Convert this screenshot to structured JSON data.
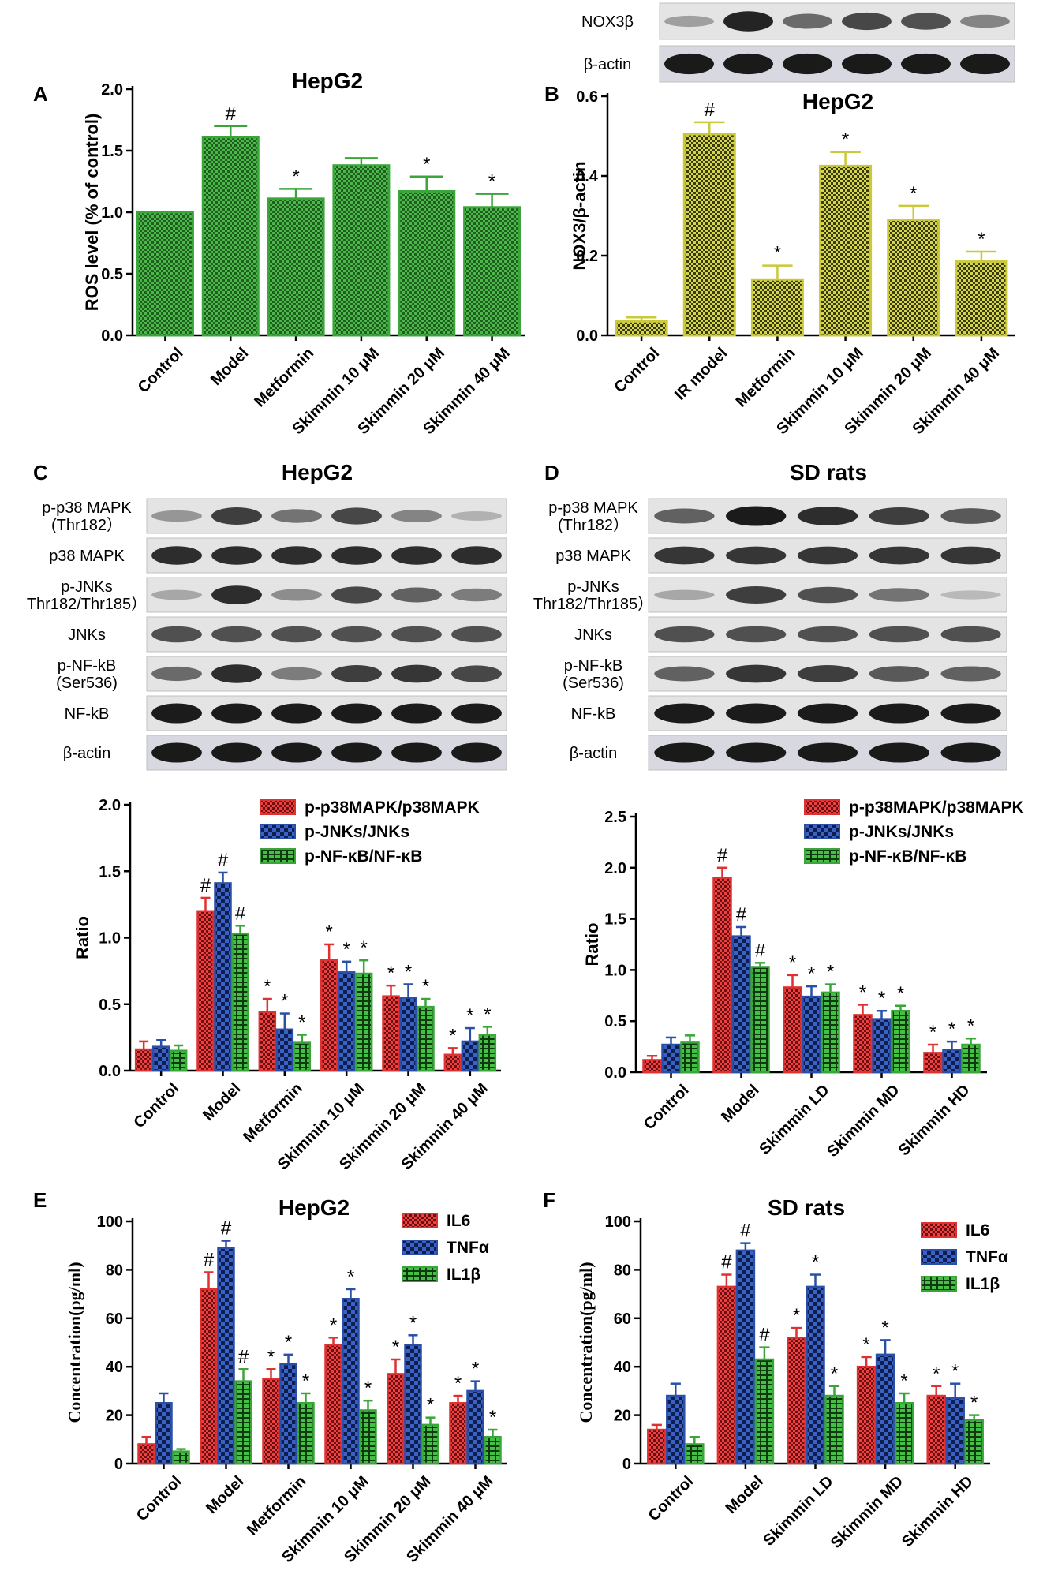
{
  "colors": {
    "green": "#3aa63a",
    "yellow": "#c9c93a",
    "red": "#e03030",
    "blue": "#2a4fa8"
  },
  "blots": {
    "B": {
      "labels": [
        "NOX3β",
        "β-actin"
      ],
      "intensities": [
        [
          0.25,
          0.95,
          0.55,
          0.75,
          0.7,
          0.4
        ],
        [
          1,
          1,
          1,
          1,
          1,
          1
        ]
      ]
    },
    "C": {
      "labels": [
        "p-p38 MAPK\n(Thr182）",
        "p38 MAPK",
        "p-JNKs\nThr182/Thr185）",
        "JNKs",
        "p-NF-kB\n(Ser536)",
        "NF-kB",
        "β-actin"
      ],
      "intensities": [
        [
          0.3,
          0.8,
          0.5,
          0.75,
          0.4,
          0.15
        ],
        [
          0.9,
          0.9,
          0.9,
          0.9,
          0.9,
          0.9
        ],
        [
          0.2,
          0.9,
          0.35,
          0.75,
          0.6,
          0.45
        ],
        [
          0.7,
          0.7,
          0.7,
          0.7,
          0.7,
          0.7
        ],
        [
          0.55,
          0.9,
          0.45,
          0.8,
          0.85,
          0.75
        ],
        [
          1,
          1,
          1,
          1,
          1,
          1
        ],
        [
          1,
          1,
          1,
          1,
          1,
          1
        ]
      ]
    },
    "D": {
      "labels": [
        "p-p38 MAPK\n(Thr182）",
        "p38 MAPK",
        "p-JNKs\nThr182/Thr185）",
        "JNKs",
        "p-NF-kB\n(Ser536)",
        "NF-kB",
        "β-actin"
      ],
      "intensities": [
        [
          0.6,
          1,
          0.9,
          0.8,
          0.65
        ],
        [
          0.85,
          0.85,
          0.85,
          0.85,
          0.85
        ],
        [
          0.2,
          0.8,
          0.7,
          0.5,
          0.1
        ],
        [
          0.7,
          0.7,
          0.7,
          0.7,
          0.7
        ],
        [
          0.6,
          0.85,
          0.8,
          0.65,
          0.6
        ],
        [
          1,
          1,
          1,
          1,
          1
        ],
        [
          1,
          1,
          1,
          1,
          1
        ]
      ]
    }
  },
  "chart_data": [
    {
      "panel": "A",
      "type": "bar",
      "title": "HepG2",
      "ylabel": "ROS level (% of control)",
      "ylim": [
        0,
        2.0
      ],
      "yticks": [
        "0.0",
        "0.5",
        "1.0",
        "1.5",
        "2.0"
      ],
      "categories": [
        "Control",
        "Model",
        "Metformin",
        "Skimmin 10 μM",
        "Skimmin 20 μM",
        "Skimmin 40 μM"
      ],
      "series": [
        {
          "color": "green",
          "values": [
            1.0,
            1.61,
            1.11,
            1.38,
            1.17,
            1.04
          ],
          "errors": [
            0,
            0.09,
            0.08,
            0.06,
            0.12,
            0.11
          ],
          "marks": [
            "",
            "#",
            "*",
            "",
            "*",
            "*"
          ]
        }
      ]
    },
    {
      "panel": "B",
      "type": "bar",
      "title": "HepG2",
      "ylabel": "NOX3/β-actin",
      "ylim": [
        0,
        0.6
      ],
      "yticks": [
        "0.0",
        "0.2",
        "0.4",
        "0.6"
      ],
      "categories": [
        "Control",
        "IR model",
        "Metformin",
        "Skimmin 10 μM",
        "Skimmin 20 μM",
        "Skimmin 40 μM"
      ],
      "series": [
        {
          "color": "yellow",
          "values": [
            0.035,
            0.505,
            0.14,
            0.425,
            0.29,
            0.185
          ],
          "errors": [
            0.01,
            0.03,
            0.035,
            0.035,
            0.035,
            0.025
          ],
          "marks": [
            "",
            "#",
            "*",
            "*",
            "*",
            "*"
          ]
        }
      ]
    },
    {
      "panel": "C",
      "type": "bar",
      "title": "HepG2",
      "ylabel": "Ratio",
      "ylim": [
        0,
        2.0
      ],
      "yticks": [
        "0.0",
        "0.5",
        "1.0",
        "1.5",
        "2.0"
      ],
      "categories": [
        "Control",
        "Model",
        "Metformin",
        "Skimmin 10 μM",
        "Skimmin 20 μM",
        "Skimmin 40 μM"
      ],
      "series": [
        {
          "name": "p-p38MAPK/p38MAPK",
          "color": "red",
          "values": [
            0.16,
            1.2,
            0.44,
            0.83,
            0.56,
            0.12
          ],
          "errors": [
            0.06,
            0.1,
            0.1,
            0.12,
            0.08,
            0.05
          ],
          "marks": [
            "",
            "#",
            "*",
            "*",
            "*",
            "*"
          ]
        },
        {
          "name": "p-JNKs/JNKs",
          "color": "blue",
          "values": [
            0.18,
            1.41,
            0.31,
            0.74,
            0.55,
            0.22
          ],
          "errors": [
            0.05,
            0.08,
            0.12,
            0.08,
            0.1,
            0.1
          ],
          "marks": [
            "",
            "#",
            "*",
            "*",
            "*",
            "*"
          ]
        },
        {
          "name": "p-NF-κB/NF-κB",
          "color": "green",
          "values": [
            0.15,
            1.03,
            0.21,
            0.73,
            0.48,
            0.27
          ],
          "errors": [
            0.04,
            0.06,
            0.06,
            0.1,
            0.06,
            0.06
          ],
          "marks": [
            "",
            "#",
            "*",
            "*",
            "*",
            "*"
          ]
        }
      ]
    },
    {
      "panel": "D",
      "type": "bar",
      "title": "SD rats",
      "ylabel": "Ratio",
      "ylim": [
        0,
        2.5
      ],
      "yticks": [
        "0.0",
        "0.5",
        "1.0",
        "1.5",
        "2.0",
        "2.5"
      ],
      "categories": [
        "Control",
        "Model",
        "Skimmin LD",
        "Skimmin MD",
        "Skimmin HD"
      ],
      "series": [
        {
          "name": "p-p38MAPK/p38MAPK",
          "color": "red",
          "values": [
            0.12,
            1.9,
            0.83,
            0.56,
            0.19
          ],
          "errors": [
            0.04,
            0.1,
            0.12,
            0.1,
            0.08
          ],
          "marks": [
            "",
            "#",
            "*",
            "*",
            "*"
          ]
        },
        {
          "name": "p-JNKs/JNKs",
          "color": "blue",
          "values": [
            0.27,
            1.33,
            0.74,
            0.52,
            0.22
          ],
          "errors": [
            0.07,
            0.09,
            0.1,
            0.08,
            0.08
          ],
          "marks": [
            "",
            "#",
            "*",
            "*",
            "*"
          ]
        },
        {
          "name": "p-NF-κB/NF-κB",
          "color": "green",
          "values": [
            0.29,
            1.03,
            0.78,
            0.6,
            0.27
          ],
          "errors": [
            0.07,
            0.04,
            0.08,
            0.05,
            0.06
          ],
          "marks": [
            "",
            "#",
            "*",
            "*",
            "*"
          ]
        }
      ]
    },
    {
      "panel": "E",
      "type": "bar",
      "title": "HepG2",
      "ylabel": "Concentration(pg/ml)",
      "ylim": [
        0,
        100
      ],
      "yticks": [
        "0",
        "20",
        "40",
        "60",
        "80",
        "100"
      ],
      "categories": [
        "Control",
        "Model",
        "Metformin",
        "Skimmin 10 μM",
        "Skimmin 20 μM",
        "Skimmin 40 μM"
      ],
      "series": [
        {
          "name": "IL6",
          "color": "red",
          "values": [
            8,
            72,
            35,
            49,
            37,
            25
          ],
          "errors": [
            3,
            7,
            4,
            3,
            6,
            3
          ],
          "marks": [
            "",
            "#",
            "*",
            "*",
            "*",
            "*"
          ]
        },
        {
          "name": "TNFα",
          "color": "blue",
          "values": [
            25,
            89,
            41,
            68,
            49,
            30
          ],
          "errors": [
            4,
            3,
            4,
            4,
            4,
            4
          ],
          "marks": [
            "",
            "#",
            "*",
            "*",
            "*",
            "*"
          ]
        },
        {
          "name": "IL1β",
          "color": "green",
          "values": [
            5,
            34,
            25,
            22,
            16,
            11
          ],
          "errors": [
            1,
            5,
            4,
            4,
            3,
            3
          ],
          "marks": [
            "",
            "#",
            "*",
            "*",
            "*",
            "*"
          ]
        }
      ]
    },
    {
      "panel": "F",
      "type": "bar",
      "title": "SD rats",
      "ylabel": "Concentration(pg/ml)",
      "ylim": [
        0,
        100
      ],
      "yticks": [
        "0",
        "20",
        "40",
        "60",
        "80",
        "100"
      ],
      "categories": [
        "Control",
        "Model",
        "Skimmin LD",
        "Skimmin MD",
        "Skimmin HD"
      ],
      "series": [
        {
          "name": "IL6",
          "color": "red",
          "values": [
            14,
            73,
            52,
            40,
            28
          ],
          "errors": [
            2,
            5,
            4,
            4,
            4
          ],
          "marks": [
            "",
            "#",
            "*",
            "*",
            "*"
          ]
        },
        {
          "name": "TNFα",
          "color": "blue",
          "values": [
            28,
            88,
            73,
            45,
            27
          ],
          "errors": [
            5,
            3,
            5,
            6,
            6
          ],
          "marks": [
            "",
            "#",
            "*",
            "*",
            "*"
          ]
        },
        {
          "name": "IL1β",
          "color": "green",
          "values": [
            8,
            43,
            28,
            25,
            18
          ],
          "errors": [
            3,
            5,
            4,
            4,
            2
          ],
          "marks": [
            "",
            "#",
            "*",
            "*",
            "*"
          ]
        }
      ]
    }
  ]
}
